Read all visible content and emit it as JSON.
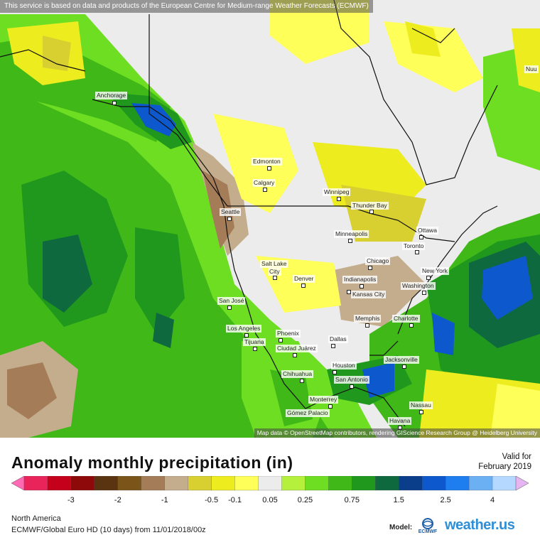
{
  "banner": "This service is based on data and products of the European Centre for Medium-range Weather Forecasts (ECMWF)",
  "attribution": "Map data © OpenStreetMap contributors, rendering GIScience Research Group @ Heidelberg University",
  "cities": {
    "anchorage": "Anchorage",
    "edmonton": "Edmonton",
    "calgary": "Calgary",
    "winnipeg": "Winnipeg",
    "thunder_bay": "Thunder Bay",
    "seattle": "Seattle",
    "minneapolis": "Minneapolis",
    "ottawa": "Ottawa",
    "toronto": "Toronto",
    "salt_lake_city_1": "Salt Lake",
    "salt_lake_city_2": "City",
    "denver": "Denver",
    "chicago": "Chicago",
    "new_york": "New York",
    "indianapolis": "Indianapolis",
    "washington": "Washington",
    "kansas_city": "Kansas City",
    "san_jose": "San José",
    "memphis": "Memphis",
    "charlotte": "Charlotte",
    "los_angeles": "Los Angeles",
    "phoenix": "Phoenix",
    "dallas": "Dallas",
    "tijuana": "Tijuana",
    "ciudad_juarez": "Ciudad Juárez",
    "jacksonville": "Jacksonville",
    "houston": "Houston",
    "chihuahua": "Chihuahua",
    "san_antonio": "San Antonio",
    "monterrey": "Monterrey",
    "gomez_palacio": "Gómez Palacio",
    "nassau": "Nassau",
    "havana": "Havana",
    "nuuk_partial": "Nuu"
  },
  "title": "Anomaly monthly precipitation (in)",
  "valid_label": "Valid for",
  "valid_date": "February 2019",
  "legend": {
    "ticks": [
      "-3",
      "-2",
      "-1",
      "-0.5",
      "-0.1",
      "0.05",
      "0.25",
      "0.75",
      "1.5",
      "2.5",
      "4"
    ],
    "colors": [
      "#e8245a",
      "#c4001a",
      "#8e0a0a",
      "#5a3410",
      "#7a5418",
      "#a57c58",
      "#c4ad8c",
      "#d8d030",
      "#ecec1e",
      "#ffff5a",
      "#ececec",
      "#b4f03c",
      "#6ede22",
      "#40b818",
      "#20981e",
      "#0e6a3e",
      "#0a3e8a",
      "#0c58cc",
      "#1e7ef0",
      "#6cb0f4",
      "#b4d8ff"
    ],
    "left_arrow_color": "#ff6ab4",
    "right_arrow_color": "#e6b4f0"
  },
  "region": "North America",
  "model_run": "ECMWF/Global Euro HD (10 days) from 11/01/2018/00z",
  "model_label": "Model:",
  "model_logo_text": "ECMWF",
  "brand": "weather.us"
}
